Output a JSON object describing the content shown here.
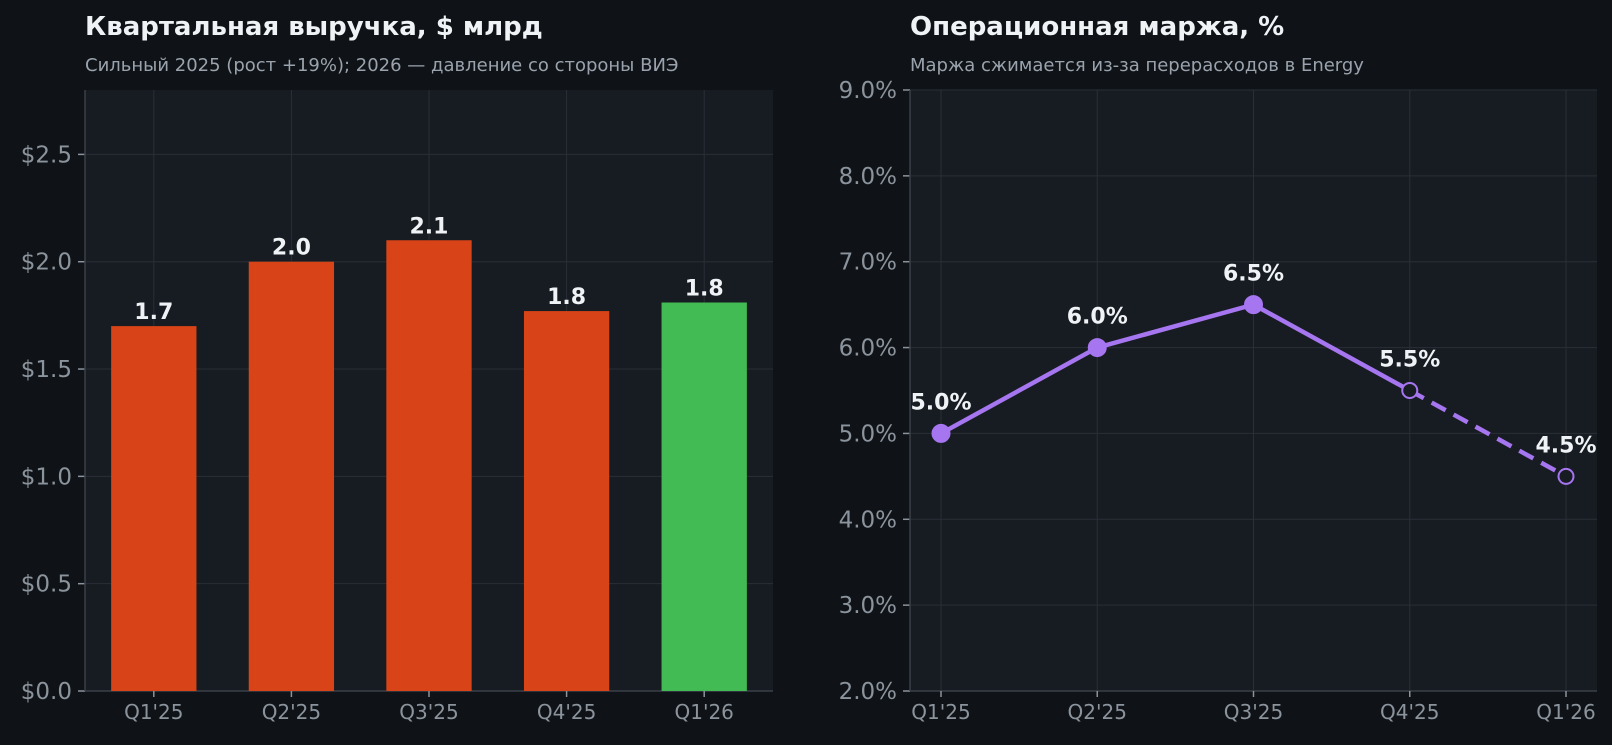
{
  "charts": [
    {
      "title": "Квартальная выручка, $ млрд",
      "subtitle": "Сильный 2025 (рост +19%); 2026 — давление со стороны ВИЭ"
    },
    {
      "title": "Операционная маржа, %",
      "subtitle": "Маржа сжимается из-за перерасходов в Energy"
    }
  ],
  "colors": {
    "actual_bar": "#d84418",
    "forecast_bar": "#42bb55",
    "line": "#a675f0"
  },
  "chart_data": [
    {
      "type": "bar",
      "title": "Квартальная выручка, $ млрд",
      "subtitle": "Сильный 2025 (рост +19%); 2026 — давление со стороны ВИЭ",
      "categories": [
        "Q1'25",
        "Q2'25",
        "Q3'25",
        "Q4'25",
        "Q1'26"
      ],
      "values": [
        1.7,
        2.0,
        2.1,
        1.77,
        1.81
      ],
      "value_labels": [
        "1.7",
        "2.0",
        "2.1",
        "1.8",
        "1.8"
      ],
      "highlighted_category": "Q1'26",
      "ylim": [
        0,
        2.8
      ],
      "yticks": [
        0,
        0.5,
        1.0,
        1.5,
        2.0,
        2.5
      ],
      "ytick_labels": [
        "$0.0",
        "$0.5",
        "$1.0",
        "$1.5",
        "$2.0",
        "$2.5"
      ],
      "xlabel": "",
      "ylabel": "",
      "grid": true
    },
    {
      "type": "line",
      "title": "Операционная маржа, %",
      "subtitle": "Маржа сжимается из-за перерасходов в Energy",
      "categories": [
        "Q1'25",
        "Q2'25",
        "Q3'25",
        "Q4'25",
        "Q1'26"
      ],
      "values": [
        5.0,
        6.0,
        6.5,
        5.5,
        4.5
      ],
      "value_labels": [
        "5.0%",
        "6.0%",
        "6.5%",
        "5.5%",
        "4.5%"
      ],
      "dashed_from_category": "Q4'25",
      "hollow_markers": [
        "Q4'25",
        "Q1'26"
      ],
      "ylim": [
        2.0,
        9.0
      ],
      "yticks": [
        2,
        3,
        4,
        5,
        6,
        7,
        8,
        9
      ],
      "ytick_labels": [
        "2.0%",
        "3.0%",
        "4.0%",
        "5.0%",
        "6.0%",
        "7.0%",
        "8.0%",
        "9.0%"
      ],
      "xlabel": "",
      "ylabel": "",
      "grid": true
    }
  ]
}
